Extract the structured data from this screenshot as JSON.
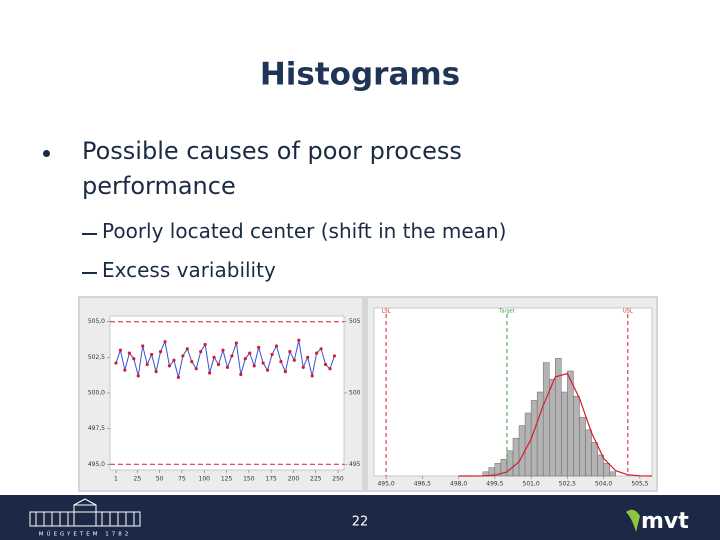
{
  "header": {
    "title": "Histograms"
  },
  "bullets": [
    {
      "text": "Possible causes of poor process performance",
      "sub": [
        "Poorly located center (shift in the mean)",
        "Excess variability"
      ]
    }
  ],
  "figures": [
    {
      "type": "line",
      "x": [
        1,
        6,
        11,
        16,
        21,
        26,
        31,
        36,
        41,
        46,
        51,
        56,
        61,
        66,
        71,
        76,
        81,
        86,
        91,
        96,
        101,
        106,
        111,
        116,
        121,
        126,
        131,
        136,
        141,
        146,
        151,
        156,
        161,
        166,
        171,
        176,
        181,
        186,
        191,
        196,
        201,
        206,
        211,
        216,
        221,
        226,
        231,
        236,
        241,
        246
      ],
      "values": [
        502.1,
        503.0,
        501.6,
        502.8,
        502.4,
        501.2,
        503.3,
        502.0,
        502.7,
        501.5,
        502.9,
        503.6,
        501.9,
        502.3,
        501.1,
        502.6,
        503.1,
        502.2,
        501.7,
        502.9,
        503.4,
        501.4,
        502.5,
        502.0,
        503.0,
        501.8,
        502.6,
        503.5,
        501.3,
        502.4,
        502.8,
        501.9,
        503.2,
        502.1,
        501.6,
        502.7,
        503.3,
        502.2,
        501.5,
        502.9,
        502.3,
        503.7,
        501.8,
        502.5,
        501.2,
        502.8,
        503.1,
        502.0,
        501.7,
        502.6
      ],
      "line_color": "#3b4fd0",
      "point_color": "#d81b2a",
      "xlim": [
        -5.7,
        256.7
      ],
      "xticks": [
        1,
        25,
        50,
        75,
        100,
        125,
        150,
        175,
        200,
        225,
        250
      ],
      "ylim": [
        494.6,
        505.4
      ],
      "yticks": [
        {
          "value": 505,
          "label": "505,0"
        },
        {
          "value": 502.5,
          "label": "502,5"
        },
        {
          "value": 500,
          "label": "500,0"
        },
        {
          "value": 497.5,
          "label": "497,5"
        },
        {
          "value": 495,
          "label": "495,0"
        }
      ],
      "y2ticks": [
        505,
        500,
        495
      ],
      "limits": [
        505,
        495
      ],
      "limit_color": "#d81b2a"
    },
    {
      "type": "histogram",
      "bins": [
        499.0,
        499.25,
        499.5,
        499.75,
        500.0,
        500.25,
        500.5,
        500.75,
        501.0,
        501.25,
        501.5,
        501.75,
        502.0,
        502.25,
        502.5,
        502.75,
        503.0,
        503.25,
        503.5,
        503.75,
        504.0,
        504.25,
        504.5
      ],
      "counts": [
        1,
        2,
        3,
        4,
        6,
        9,
        12,
        15,
        18,
        20,
        27,
        23,
        28,
        20,
        25,
        19,
        14,
        11,
        8,
        5,
        3,
        1
      ],
      "bar_color": "#b3b3b3",
      "curve": {
        "x": [
          498,
          498.5,
          499,
          499.5,
          500,
          500.5,
          501,
          501.5,
          502,
          502.5,
          503,
          503.5,
          504,
          504.5,
          505,
          505.5,
          506
        ],
        "y": [
          0,
          0.003,
          0.03,
          0.2,
          0.95,
          3.4,
          8.8,
          16.8,
          23.6,
          24.4,
          18.5,
          10.3,
          4.2,
          1.25,
          0.28,
          0.05,
          0
        ],
        "color": "#d81b2a"
      },
      "xlim": [
        494.5,
        506
      ],
      "ylim": [
        0,
        40
      ],
      "xticks": [
        {
          "value": 495,
          "label": "495,0"
        },
        {
          "value": 496.5,
          "label": "496,5"
        },
        {
          "value": 498,
          "label": "498,0"
        },
        {
          "value": 499.5,
          "label": "499,5"
        },
        {
          "value": 501,
          "label": "501,0"
        },
        {
          "value": 502.5,
          "label": "502,5"
        },
        {
          "value": 504,
          "label": "504,0"
        },
        {
          "value": 505.5,
          "label": "505,5"
        }
      ],
      "spec": [
        {
          "name": "LSL",
          "value": 495,
          "color": "#d81b2a"
        },
        {
          "name": "Target",
          "value": 500,
          "color": "#3a9a3a"
        },
        {
          "name": "USL",
          "value": 505,
          "color": "#d81b2a"
        }
      ]
    }
  ],
  "footer": {
    "page": "22",
    "logo_left": "MŰEGYETEM 1782",
    "logo_right": "mvt"
  }
}
